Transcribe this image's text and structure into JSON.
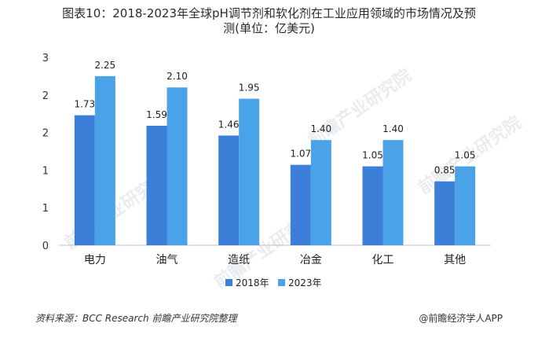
{
  "header": {
    "title_line1": "图表10：2018-2023年全球pH调节剂和软化剂在工业应用领域的市场情况及预",
    "title_line2": "测(单位：亿美元)"
  },
  "footer": {
    "source": "资料来源：BCC Research 前瞻产业研究院整理",
    "credit": "@前瞻经济学人APP"
  },
  "watermark": "前瞻产业研究院",
  "colors": {
    "series1": "#3b7fd9",
    "series2": "#4aa3e8",
    "axis": "#bfbfbf"
  },
  "chart_data": {
    "type": "bar",
    "categories": [
      "电力",
      "油气",
      "造纸",
      "冶金",
      "化工",
      "其他"
    ],
    "series": [
      {
        "name": "2018年",
        "values": [
          1.73,
          1.59,
          1.46,
          1.07,
          1.05,
          0.85
        ],
        "labels": [
          "1.73",
          "1.59",
          "1.46",
          "1.07",
          "1.05",
          "0.85"
        ]
      },
      {
        "name": "2023年",
        "values": [
          2.25,
          2.1,
          1.95,
          1.4,
          1.4,
          1.05
        ],
        "labels": [
          "2.25",
          "2.10",
          "1.95",
          "1.40",
          "1.40",
          "1.05"
        ]
      }
    ],
    "yticks": [
      "0",
      "1",
      "1",
      "2",
      "2",
      "3"
    ],
    "ylim": [
      0,
      2.5
    ],
    "grid": false,
    "legend_position": "bottom"
  }
}
